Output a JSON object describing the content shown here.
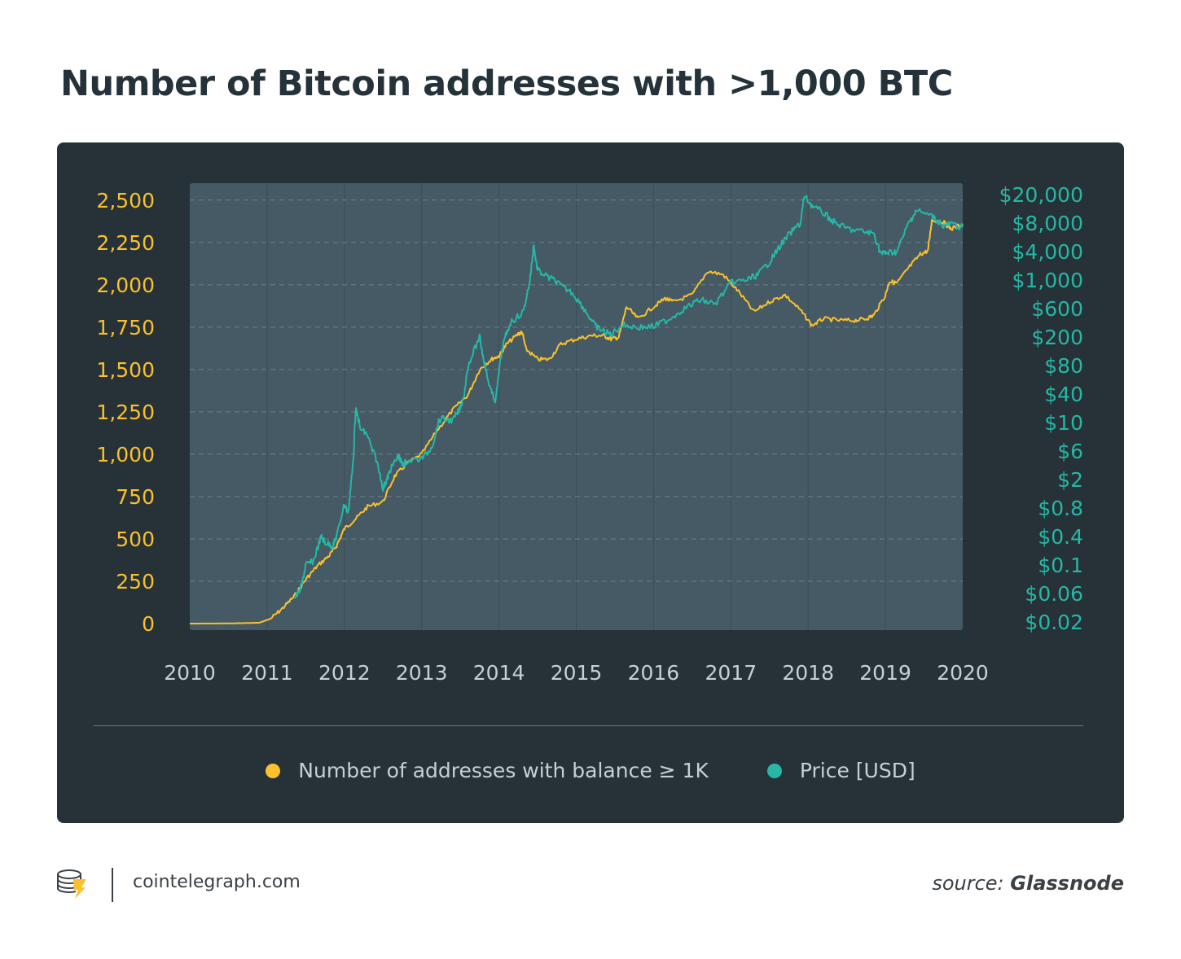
{
  "title": "Number of Bitcoin addresses with >1,000 BTC",
  "footer": {
    "site": "cointelegraph.com",
    "source_prefix": "source:",
    "source_name": "Glassnode"
  },
  "colors": {
    "background": "#ffffff",
    "panel": "#263238",
    "plot_area": "#455a64",
    "addresses": "#fbc02d",
    "price": "#26b7a6",
    "text_dark": "#26323a"
  },
  "chart_data": {
    "type": "line",
    "x_ticks": [
      "2010",
      "2011",
      "2012",
      "2013",
      "2014",
      "2015",
      "2016",
      "2017",
      "2018",
      "2019",
      "2020"
    ],
    "xlim": [
      2010,
      2020
    ],
    "left_axis": {
      "ticks": [
        "0",
        "250",
        "500",
        "750",
        "1,000",
        "1,250",
        "1,500",
        "1,750",
        "2,000",
        "2,250",
        "2,500"
      ],
      "ylim": [
        0,
        2600
      ],
      "color": "#fbc02d"
    },
    "right_axis": {
      "ticks": [
        "$0.02",
        "$0.06",
        "$0.1",
        "$0.4",
        "$0.8",
        "$2",
        "$6",
        "$10",
        "$40",
        "$80",
        "$200",
        "$600",
        "$1,000",
        "$4,000",
        "$8,000",
        "$20,000"
      ],
      "scale": "log (USD, evenly spaced labels)",
      "color": "#26b7a6"
    },
    "grid": "horizontal dashed",
    "legend_position": "bottom-center",
    "series": [
      {
        "name": "Number of addresses with balance ≥ 1K",
        "axis": "left",
        "color": "#fbc02d",
        "x": [
          2010.0,
          2010.5,
          2010.9,
          2011.05,
          2011.2,
          2011.35,
          2011.5,
          2011.65,
          2011.8,
          2011.9,
          2012.0,
          2012.15,
          2012.3,
          2012.5,
          2012.65,
          2012.8,
          2013.0,
          2013.2,
          2013.4,
          2013.6,
          2013.75,
          2013.9,
          2014.0,
          2014.1,
          2014.25,
          2014.3,
          2014.35,
          2014.5,
          2014.65,
          2014.8,
          2015.0,
          2015.2,
          2015.35,
          2015.45,
          2015.55,
          2015.65,
          2015.8,
          2016.0,
          2016.15,
          2016.25,
          2016.5,
          2016.7,
          2016.9,
          2017.1,
          2017.3,
          2017.5,
          2017.7,
          2017.9,
          2018.05,
          2018.2,
          2018.4,
          2018.6,
          2018.75,
          2018.85,
          2019.0,
          2019.05,
          2019.15,
          2019.3,
          2019.45,
          2019.55,
          2019.6,
          2019.75,
          2019.85,
          2020.0
        ],
        "values": [
          0,
          1,
          5,
          30,
          90,
          160,
          260,
          340,
          400,
          460,
          560,
          620,
          690,
          720,
          870,
          940,
          1000,
          1140,
          1260,
          1350,
          1500,
          1560,
          1580,
          1650,
          1710,
          1720,
          1620,
          1560,
          1560,
          1650,
          1680,
          1700,
          1700,
          1680,
          1690,
          1870,
          1800,
          1870,
          1920,
          1900,
          1940,
          2080,
          2060,
          1960,
          1840,
          1900,
          1940,
          1850,
          1760,
          1800,
          1790,
          1790,
          1800,
          1820,
          1940,
          2020,
          2010,
          2100,
          2180,
          2200,
          2380,
          2370,
          2330,
          2360
        ]
      },
      {
        "name": "Price [USD]",
        "axis": "right",
        "color": "#26b7a6",
        "x": [
          2011.35,
          2011.45,
          2011.5,
          2011.6,
          2011.7,
          2011.75,
          2011.85,
          2011.9,
          2012.0,
          2012.05,
          2012.1,
          2012.15,
          2012.2,
          2012.3,
          2012.4,
          2012.5,
          2012.55,
          2012.6,
          2012.7,
          2012.75,
          2012.8,
          2013.0,
          2013.15,
          2013.25,
          2013.4,
          2013.5,
          2013.6,
          2013.75,
          2013.8,
          2013.85,
          2013.95,
          2014.05,
          2014.15,
          2014.3,
          2014.4,
          2014.45,
          2014.5,
          2014.65,
          2014.8,
          2014.95,
          2015.1,
          2015.25,
          2015.35,
          2015.45,
          2015.6,
          2015.8,
          2016.0,
          2016.2,
          2016.4,
          2016.6,
          2016.8,
          2017.0,
          2017.2,
          2017.35,
          2017.5,
          2017.6,
          2017.75,
          2017.9,
          2017.95,
          2018.05,
          2018.2,
          2018.35,
          2018.5,
          2018.7,
          2018.85,
          2018.95,
          2019.05,
          2019.15,
          2019.3,
          2019.4,
          2019.6,
          2019.75,
          2019.85,
          2020.0
        ],
        "values": [
          0.05,
          0.07,
          0.1,
          0.12,
          0.4,
          0.3,
          0.25,
          0.4,
          0.9,
          0.7,
          2.5,
          18,
          9,
          8,
          5,
          1.5,
          2,
          3,
          5,
          3.5,
          4,
          4.5,
          7,
          12,
          11,
          20,
          80,
          200,
          100,
          60,
          30,
          150,
          350,
          500,
          1000,
          5000,
          1600,
          1100,
          900,
          800,
          600,
          300,
          250,
          220,
          320,
          290,
          300,
          400,
          600,
          700,
          650,
          950,
          1000,
          1300,
          2400,
          4200,
          6000,
          8000,
          19000,
          14000,
          11000,
          8000,
          7000,
          6500,
          6200,
          3600,
          3800,
          4000,
          8000,
          12000,
          10000,
          7500,
          7800,
          7200
        ]
      }
    ]
  },
  "legend": [
    {
      "label": "Number of addresses with balance ≥ 1K",
      "color": "#fbc02d"
    },
    {
      "label": "Price [USD]",
      "color": "#26b7a6"
    }
  ]
}
